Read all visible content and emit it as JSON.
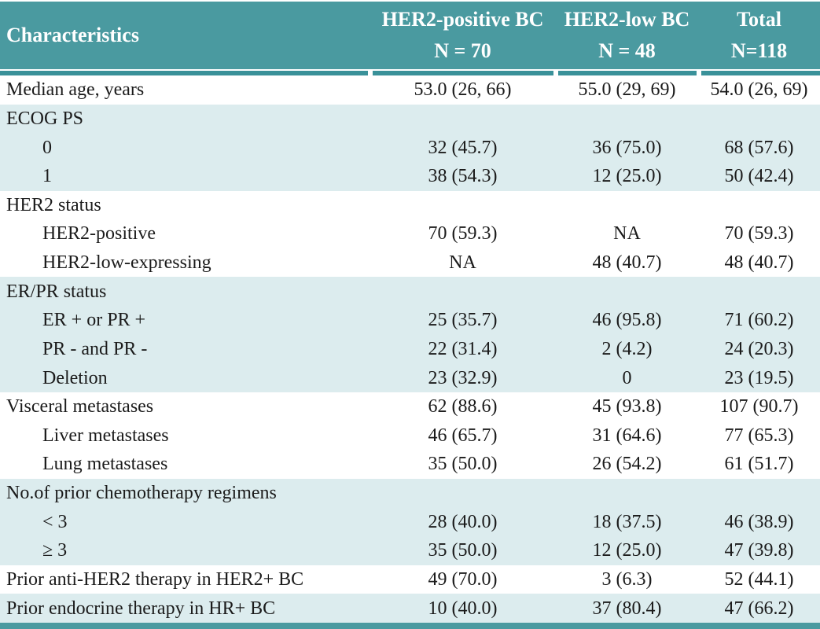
{
  "table": {
    "title_cell": "Characteristics",
    "columns": [
      {
        "label": "HER2-positive BC",
        "n": "N = 70"
      },
      {
        "label": "HER2-low BC",
        "n": "N = 48"
      },
      {
        "label": "Total",
        "n": "N=118"
      }
    ],
    "rows": [
      {
        "label": "Median age, years",
        "indent": false,
        "shaded": false,
        "values": [
          "53.0 (26, 66)",
          "55.0 (29, 69)",
          "54.0 (26, 69)"
        ]
      },
      {
        "label": "ECOG PS",
        "indent": false,
        "shaded": true,
        "values": [
          "",
          "",
          ""
        ]
      },
      {
        "label": "0",
        "indent": true,
        "shaded": true,
        "values": [
          "32 (45.7)",
          "36 (75.0)",
          "68 (57.6)"
        ]
      },
      {
        "label": "1",
        "indent": true,
        "shaded": true,
        "values": [
          "38 (54.3)",
          "12 (25.0)",
          "50 (42.4)"
        ]
      },
      {
        "label": "HER2 status",
        "indent": false,
        "shaded": false,
        "values": [
          "",
          "",
          ""
        ]
      },
      {
        "label": "HER2-positive",
        "indent": true,
        "shaded": false,
        "values": [
          "70 (59.3)",
          "NA",
          "70 (59.3)"
        ]
      },
      {
        "label": "HER2-low-expressing",
        "indent": true,
        "shaded": false,
        "values": [
          "NA",
          "48 (40.7)",
          "48 (40.7)"
        ]
      },
      {
        "label": "ER/PR status",
        "indent": false,
        "shaded": true,
        "values": [
          "",
          "",
          ""
        ]
      },
      {
        "label": "ER + or PR +",
        "indent": true,
        "shaded": true,
        "values": [
          "25 (35.7)",
          "46 (95.8)",
          "71 (60.2)"
        ]
      },
      {
        "label": "PR - and PR -",
        "indent": true,
        "shaded": true,
        "values": [
          "22 (31.4)",
          "2 (4.2)",
          "24 (20.3)"
        ]
      },
      {
        "label": "Deletion",
        "indent": true,
        "shaded": true,
        "values": [
          "23 (32.9)",
          "0",
          "23 (19.5)"
        ]
      },
      {
        "label": "Visceral metastases",
        "indent": false,
        "shaded": false,
        "values": [
          "62 (88.6)",
          "45 (93.8)",
          "107 (90.7)"
        ]
      },
      {
        "label": "Liver metastases",
        "indent": true,
        "shaded": false,
        "values": [
          "46 (65.7)",
          "31 (64.6)",
          "77 (65.3)"
        ]
      },
      {
        "label": "Lung metastases",
        "indent": true,
        "shaded": false,
        "values": [
          "35 (50.0)",
          "26 (54.2)",
          "61 (51.7)"
        ]
      },
      {
        "label": "No.of prior chemotherapy regimens",
        "indent": false,
        "shaded": true,
        "values": [
          "",
          "",
          ""
        ]
      },
      {
        "label": "< 3",
        "indent": true,
        "shaded": true,
        "values": [
          "28 (40.0)",
          "18 (37.5)",
          "46 (38.9)"
        ]
      },
      {
        "label": "≥ 3",
        "indent": true,
        "shaded": true,
        "values": [
          "35 (50.0)",
          "12 (25.0)",
          "47 (39.8)"
        ]
      },
      {
        "label": "Prior anti-HER2 therapy in HER2+ BC",
        "indent": false,
        "shaded": false,
        "values": [
          "49 (70.0)",
          "3 (6.3)",
          "52 (44.1)"
        ]
      },
      {
        "label": "Prior endocrine therapy in HR+ BC",
        "indent": false,
        "shaded": true,
        "values": [
          "10 (40.0)",
          "37 (80.4)",
          "47 (66.2)"
        ]
      }
    ],
    "colors": {
      "header_bg": "#4a9aa0",
      "header_text": "#ffffff",
      "divider": "#3a9199",
      "shaded_row": "#dcecee",
      "bottom_bar": "#4a9aa0",
      "body_text": "#1b1b1b"
    }
  }
}
